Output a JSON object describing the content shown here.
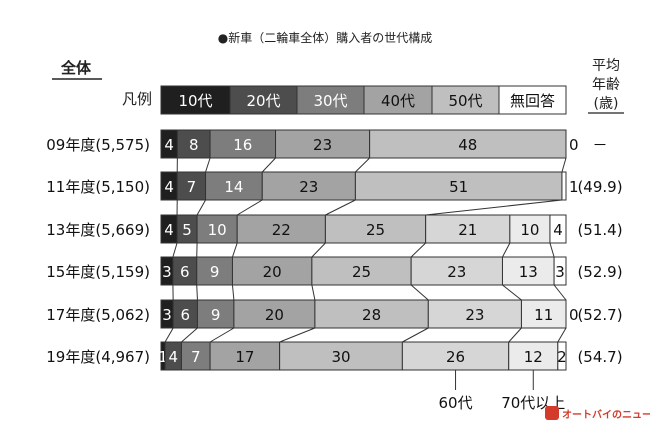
{
  "chart_data": {
    "type": "bar",
    "orientation": "horizontal",
    "stacked": true,
    "normalized_percent": true,
    "title": "●新車（二輪車全体）購入者の世代構成",
    "group_label": "全体",
    "legend_label": "凡例",
    "legend_position": "top",
    "legend": [
      "10代",
      "20代",
      "30代",
      "40代",
      "50代",
      "無回答"
    ],
    "avg_age_header_lines": [
      "平均",
      "年齢",
      "(歳)"
    ],
    "categories": [
      "09年度(5,575)",
      "11年度(5,150)",
      "13年度(5,669)",
      "15年度(5,159)",
      "17年度(5,062)",
      "19年度(4,967)"
    ],
    "series": [
      {
        "name": "10代",
        "color": "#1f1f1f",
        "values": [
          4,
          4,
          4,
          3,
          3,
          1
        ]
      },
      {
        "name": "20代",
        "color": "#4d4d4d",
        "values": [
          8,
          7,
          5,
          6,
          6,
          4
        ]
      },
      {
        "name": "30代",
        "color": "#7d7d7d",
        "values": [
          16,
          14,
          10,
          9,
          9,
          7
        ]
      },
      {
        "name": "40代",
        "color": "#a3a3a3",
        "values": [
          23,
          23,
          22,
          20,
          20,
          17
        ]
      },
      {
        "name": "50代",
        "color": "#bfbfbf",
        "values": [
          48,
          51,
          25,
          25,
          28,
          30
        ]
      },
      {
        "name": "60代",
        "color": "#d6d6d6",
        "values": [
          null,
          null,
          21,
          23,
          23,
          26
        ]
      },
      {
        "name": "70代以上",
        "color": "#ebebeb",
        "values": [
          null,
          null,
          10,
          13,
          11,
          12
        ]
      },
      {
        "name": "無回答",
        "color": "#ffffff",
        "values": [
          0,
          1,
          4,
          3,
          0,
          2
        ]
      }
    ],
    "avg_age": [
      "－",
      "(49.9)",
      "(51.4)",
      "(52.9)",
      "(52.7)",
      "(54.7)"
    ],
    "callouts": [
      "60代",
      "70代以上"
    ]
  },
  "watermark": "オートバイのニュース"
}
